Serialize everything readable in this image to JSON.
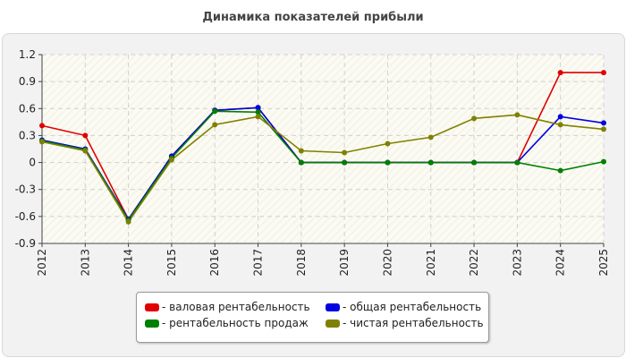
{
  "chart_data": {
    "type": "line",
    "title": "Динамика показателей прибыли",
    "x": [
      "2012",
      "2013",
      "2014",
      "2015",
      "2016",
      "2017",
      "2018",
      "2019",
      "2020",
      "2021",
      "2022",
      "2023",
      "2024",
      "2025"
    ],
    "ylim": [
      -0.9,
      1.2
    ],
    "yticks": [
      "1.2",
      "0.9",
      "0.6",
      "0.3",
      "0",
      "-0.3",
      "-0.6",
      "-0.9"
    ],
    "grid": true,
    "legend_position": "bottom",
    "series": [
      {
        "name": "- валовая рентабельность",
        "color": "#e00000",
        "values": [
          0.41,
          0.3,
          -0.63,
          0.07,
          0.58,
          0.61,
          0,
          0,
          0,
          0,
          0,
          0,
          1.0,
          1.0
        ]
      },
      {
        "name": "- общая рентабельность",
        "color": "#0000e0",
        "values": [
          0.25,
          0.15,
          -0.63,
          0.07,
          0.58,
          0.61,
          0,
          0,
          0,
          0,
          0,
          0,
          0.51,
          0.44
        ]
      },
      {
        "name": "- рентабельность продаж",
        "color": "#008000",
        "values": [
          0.24,
          0.14,
          -0.64,
          0.05,
          0.57,
          0.56,
          0,
          0,
          0,
          0,
          0,
          0,
          -0.09,
          0.01
        ]
      },
      {
        "name": "- чистая рентабельность",
        "color": "#808000",
        "values": [
          0.23,
          0.13,
          -0.66,
          0.03,
          0.42,
          0.51,
          0.13,
          0.11,
          0.21,
          0.28,
          0.49,
          0.53,
          0.42,
          0.37
        ]
      }
    ]
  }
}
